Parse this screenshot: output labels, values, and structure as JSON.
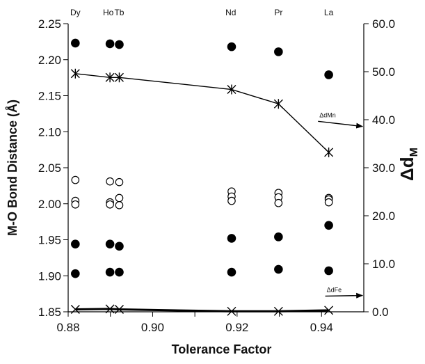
{
  "chart_data": {
    "type": "scatter",
    "xlabel": "Tolerance Factor",
    "ylabel": "M-O Bond Distance (Å)",
    "y2label_main": "Δd",
    "y2label_sub": "M",
    "xlim": [
      0.88,
      0.95
    ],
    "ylim": [
      1.85,
      2.25
    ],
    "y2lim": [
      0.0,
      60.0
    ],
    "x_ticks": [
      "0.88",
      "0.90",
      "0.92",
      "0.94"
    ],
    "x_tick_values": [
      0.88,
      0.9,
      0.92,
      0.94
    ],
    "y_ticks": [
      "1.85",
      "1.90",
      "1.95",
      "2.00",
      "2.05",
      "2.10",
      "2.15",
      "2.20",
      "2.25"
    ],
    "y_tick_values": [
      1.85,
      1.9,
      1.95,
      2.0,
      2.05,
      2.1,
      2.15,
      2.2,
      2.25
    ],
    "y2_ticks": [
      "0.0",
      "10.0",
      "20.0",
      "30.0",
      "40.0",
      "50.0",
      "60.0"
    ],
    "y2_tick_values": [
      0,
      10,
      20,
      30,
      40,
      50,
      60
    ],
    "element_labels": [
      {
        "label": "Dy",
        "x": 0.8817
      },
      {
        "label": "Ho",
        "x": 0.8895
      },
      {
        "label": "Tb",
        "x": 0.8921
      },
      {
        "label": "Nd",
        "x": 0.9185
      },
      {
        "label": "Pr",
        "x": 0.9298
      },
      {
        "label": "La",
        "x": 0.9417
      }
    ],
    "series": [
      {
        "marker": "filled-circle",
        "axis": "left",
        "points": [
          {
            "x": 0.8817,
            "y": 2.223
          },
          {
            "x": 0.8817,
            "y": 1.944
          },
          {
            "x": 0.8817,
            "y": 1.903
          },
          {
            "x": 0.8899,
            "y": 2.222
          },
          {
            "x": 0.8899,
            "y": 1.944
          },
          {
            "x": 0.8899,
            "y": 1.905
          },
          {
            "x": 0.8921,
            "y": 2.221
          },
          {
            "x": 0.8921,
            "y": 1.941
          },
          {
            "x": 0.8921,
            "y": 1.905
          },
          {
            "x": 0.9187,
            "y": 2.218
          },
          {
            "x": 0.9187,
            "y": 1.952
          },
          {
            "x": 0.9187,
            "y": 1.905
          },
          {
            "x": 0.9298,
            "y": 2.211
          },
          {
            "x": 0.9298,
            "y": 1.954
          },
          {
            "x": 0.9298,
            "y": 1.909
          },
          {
            "x": 0.9417,
            "y": 2.179
          },
          {
            "x": 0.9417,
            "y": 1.97
          },
          {
            "x": 0.9417,
            "y": 1.907
          }
        ]
      },
      {
        "marker": "open-circle",
        "axis": "left",
        "points": [
          {
            "x": 0.8817,
            "y": 2.033
          },
          {
            "x": 0.8817,
            "y": 2.004
          },
          {
            "x": 0.8817,
            "y": 1.999
          },
          {
            "x": 0.8899,
            "y": 2.031
          },
          {
            "x": 0.8899,
            "y": 2.002
          },
          {
            "x": 0.8899,
            "y": 1.999
          },
          {
            "x": 0.8921,
            "y": 2.03
          },
          {
            "x": 0.8921,
            "y": 2.008
          },
          {
            "x": 0.8921,
            "y": 1.998
          },
          {
            "x": 0.9187,
            "y": 2.017
          },
          {
            "x": 0.9187,
            "y": 2.01
          },
          {
            "x": 0.9187,
            "y": 2.004
          },
          {
            "x": 0.9298,
            "y": 2.015
          },
          {
            "x": 0.9298,
            "y": 2.009
          },
          {
            "x": 0.9298,
            "y": 2.001
          },
          {
            "x": 0.9417,
            "y": 2.008
          },
          {
            "x": 0.9417,
            "y": 2.006
          },
          {
            "x": 0.9417,
            "y": 2.002
          }
        ]
      },
      {
        "name": "ΔdMn",
        "marker": "asterisk",
        "axis": "right",
        "line": true,
        "line_width": "thin",
        "x": [
          0.8817,
          0.8899,
          0.8921,
          0.9187,
          0.9298,
          0.9417
        ],
        "values": [
          49.6,
          48.8,
          48.8,
          46.3,
          43.3,
          33.2
        ]
      },
      {
        "name": "ΔdFe",
        "marker": "x",
        "axis": "right",
        "line": true,
        "line_width": "thick",
        "x": [
          0.8817,
          0.8899,
          0.8921,
          0.9187,
          0.9298,
          0.9417
        ],
        "values": [
          0.5,
          0.6,
          0.5,
          0.1,
          0.1,
          0.3
        ]
      }
    ],
    "annotations": [
      {
        "text": "ΔdMn",
        "x": 0.9395,
        "y2": 40.1,
        "arrow_to_x": 0.9497,
        "arrow_to_y2": 38.6
      },
      {
        "text": "ΔdFe",
        "x": 0.9412,
        "y2": 3.7,
        "arrow_to_x": 0.9497,
        "arrow_to_y2": 3.4
      }
    ]
  }
}
